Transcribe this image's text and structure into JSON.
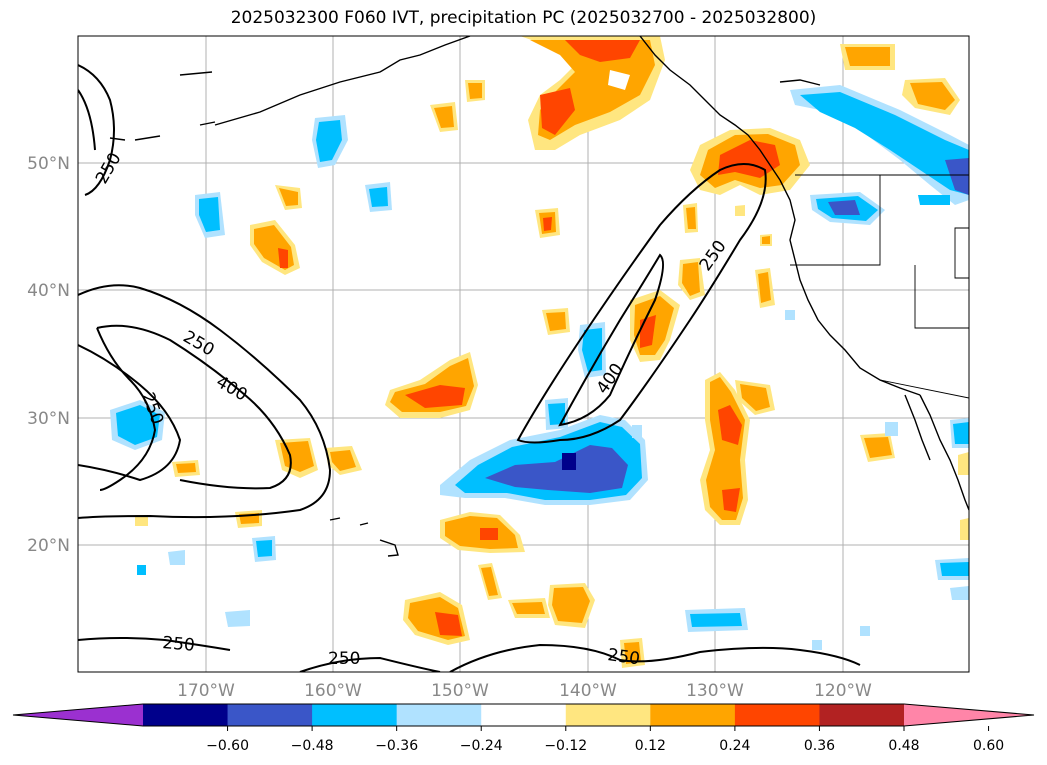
{
  "title": "2025032300 F060 IVT, precipitation PC (2025032700 - 2025032800)",
  "lat_labels": [
    "50°N",
    "40°N",
    "30°N",
    "20°N"
  ],
  "lon_labels": [
    "170°W",
    "160°W",
    "150°W",
    "140°W",
    "130°W",
    "120°W"
  ],
  "contour_labels": [
    "250",
    "250",
    "400",
    "250",
    "250",
    "400",
    "250",
    "250",
    "250"
  ],
  "colorbar": {
    "colors": [
      "#9b30d0",
      "#00008b",
      "#3a56c8",
      "#00bfff",
      "#b0e2ff",
      "#ffffff",
      "#ffe680",
      "#ffa500",
      "#ff4500",
      "#b22222",
      "#ff85a8"
    ],
    "labels": [
      "−0.60",
      "−0.48",
      "−0.36",
      "−0.24",
      "−0.12",
      "0.12",
      "0.24",
      "0.36",
      "0.48",
      "0.60"
    ]
  }
}
